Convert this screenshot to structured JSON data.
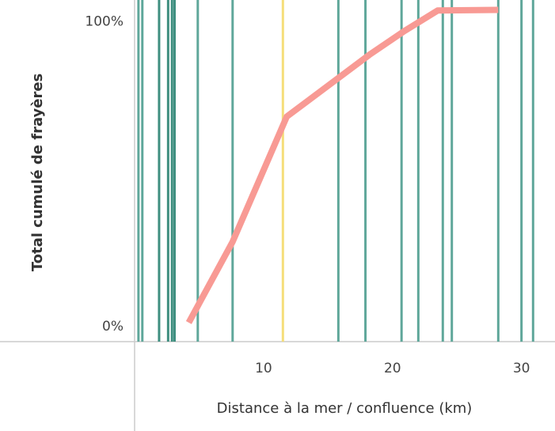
{
  "chart_data": {
    "type": "line",
    "x_label": "Distance à la mer / confluence (km)",
    "y_label": "Total cumulé de frayères",
    "x": [
      4.2,
      7.6,
      11.8,
      18.2,
      20.9,
      23.5,
      28.2
    ],
    "series": [
      {
        "color": "#f89a94",
        "values": [
          4.8,
          29.4,
          67.5,
          86.3,
          93.5,
          99.8,
          100
        ]
      }
    ],
    "xlim": [
      0,
      32.6
    ],
    "xticks": [
      10,
      20,
      30
    ],
    "ylim": [
      -1,
      103
    ],
    "yticks": [
      {
        "value": 0,
        "label": "0%"
      },
      {
        "value": 100,
        "label": "100%"
      }
    ],
    "grid": false,
    "reference_lines": {
      "x": [
        0.3,
        0.6,
        1.9,
        2.6,
        2.9,
        3.1,
        4.9,
        7.6,
        11.5,
        15.8,
        17.9,
        20.7,
        22.0,
        23.9,
        24.6,
        28.2,
        30.0,
        30.9
      ],
      "colors": [
        "#5fa79a",
        "#5fa79a",
        "#3f8f80",
        "#3f8f80",
        "#3f8f80",
        "#3f8f80",
        "#5fa79a",
        "#5fa79a",
        "#f5de7a",
        "#5fa79a",
        "#5fa79a",
        "#5fa79a",
        "#5fa79a",
        "#5fa79a",
        "#5fa79a",
        "#5fa79a",
        "#5fa79a",
        "#5fa79a"
      ]
    }
  }
}
